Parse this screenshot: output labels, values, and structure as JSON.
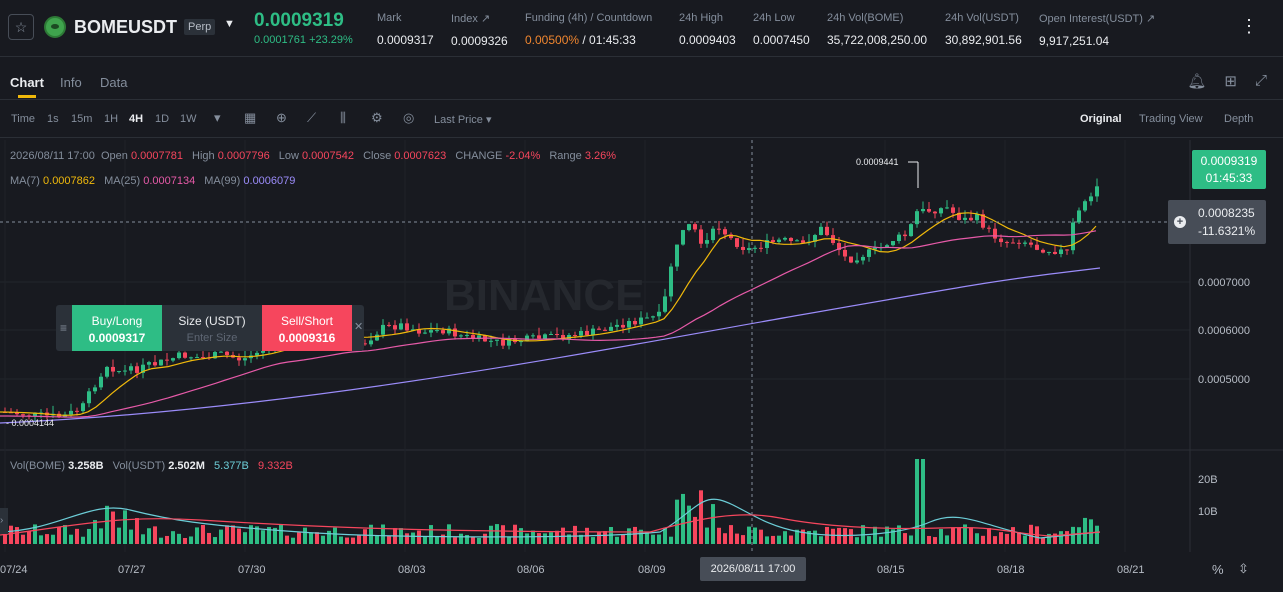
{
  "header": {
    "symbol": "BOMEUSDT",
    "contract_type": "Perp",
    "last_price": "0.0009319",
    "change_abs": "0.0001761",
    "change_pct": "+23.29%",
    "stats": [
      {
        "label": "Mark",
        "value": "0.0009317"
      },
      {
        "label": "Index ↗",
        "value": "0.0009326"
      },
      {
        "label": "Funding (4h) / Countdown",
        "value_rate": "0.00500%",
        "value_countdown": "/ 01:45:33"
      },
      {
        "label": "24h High",
        "value": "0.0009403"
      },
      {
        "label": "24h Low",
        "value": "0.0007450"
      },
      {
        "label": "24h Vol(BOME)",
        "value": "35,722,008,250.00"
      },
      {
        "label": "24h Vol(USDT)",
        "value": "30,892,901.56"
      },
      {
        "label": "Open Interest(USDT) ↗",
        "value": "9,917,251.04"
      }
    ]
  },
  "tabs": {
    "chart": "Chart",
    "info": "Info",
    "data": "Data"
  },
  "toolbar": {
    "time": "Time",
    "i1s": "1s",
    "i15m": "15m",
    "i1h": "1H",
    "i4h": "4H",
    "i1d": "1D",
    "i1w": "1W",
    "last_price_sel": "Last Price",
    "original": "Original",
    "trading_view": "Trading View",
    "depth": "Depth"
  },
  "ohlc": {
    "date": "2026/08/11 17:00",
    "open_label": "Open",
    "open": "0.0007781",
    "high_label": "High",
    "high": "0.0007796",
    "low_label": "Low",
    "low": "0.0007542",
    "close_label": "Close",
    "close": "0.0007623",
    "change_label": "CHANGE",
    "change": "-2.04%",
    "range_label": "Range",
    "range": "3.26%"
  },
  "ma": {
    "ma7_label": "MA(7)",
    "ma7": "0.0007862",
    "ma25_label": "MA(25)",
    "ma25": "0.0007134",
    "ma99_label": "MA(99)",
    "ma99": "0.0006079"
  },
  "price_tag": {
    "price": "0.0009319",
    "countdown": "01:45:33"
  },
  "crosshair_tag": {
    "price": "0.0008235",
    "pct": "-11.6321%"
  },
  "price_axis": [
    "0.0007000",
    "0.0006000",
    "0.0005000"
  ],
  "vol_axis": [
    "20B",
    "10B"
  ],
  "high_marker": "0.0009441",
  "low_marker": "0.0004144",
  "watermark": "BINANCE",
  "trade_panel": {
    "buy_label": "Buy/Long",
    "buy_price": "0.0009317",
    "size_label": "Size (USDT)",
    "size_placeholder": "Enter Size",
    "sell_label": "Sell/Short",
    "sell_price": "0.0009316"
  },
  "volume": {
    "label": "Vol(BOME)",
    "bome": "3.258B",
    "usdt_label": "Vol(USDT)",
    "usdt": "2.502M",
    "ma_a": "5.377B",
    "ma_b": "9.332B"
  },
  "dates": [
    "07/24",
    "07/27",
    "07/30",
    "08/03",
    "08/06",
    "08/09",
    "08/15",
    "08/18",
    "08/21"
  ],
  "crosshair_date": "2026/08/11 17:00",
  "colors": {
    "up": "#2ebd85",
    "down": "#f6465d",
    "ma7": "#f0b90b",
    "ma25": "#e65aa8",
    "ma99": "#9b8cfa",
    "accent": "#f0b90b"
  }
}
